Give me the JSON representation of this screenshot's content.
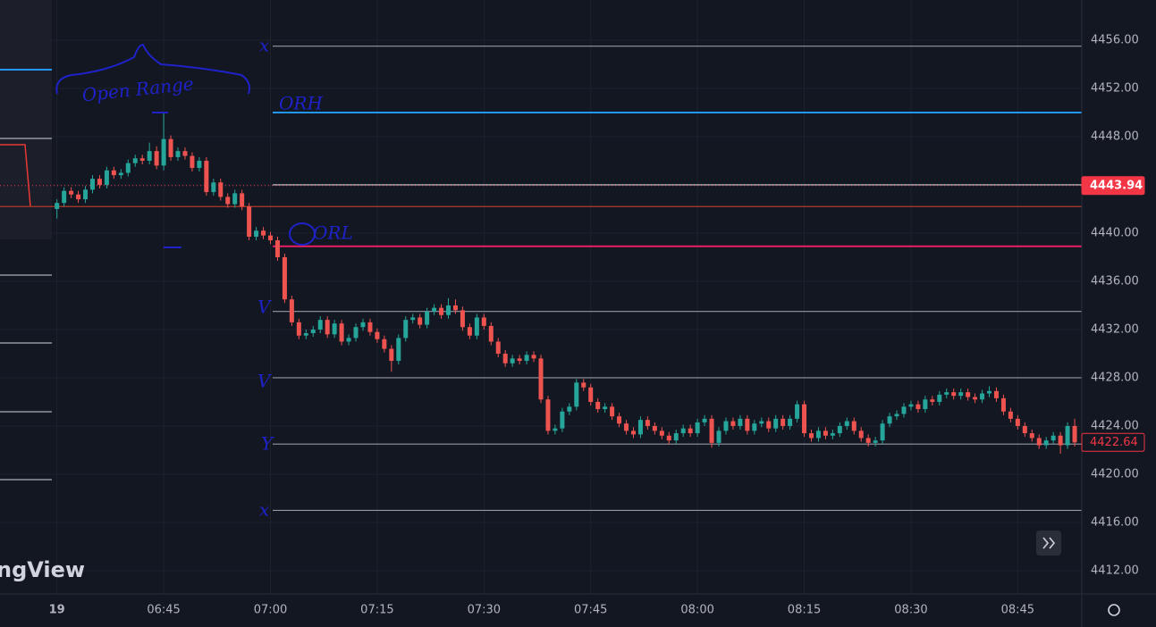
{
  "chart_data": {
    "type": "candlestick",
    "xlim": [
      "06:22",
      "08:54"
    ],
    "xticks": [
      {
        "value": "06:30",
        "label": "19"
      },
      "06:45",
      "07:00",
      "07:15",
      "07:30",
      "07:45",
      "08:00",
      "08:15",
      "08:30",
      "08:45"
    ],
    "ylim": [
      4410.07,
      4459.33
    ],
    "yticks": [
      {
        "value": 4456,
        "label": "4456.00"
      },
      {
        "value": 4452,
        "label": "4452.00"
      },
      {
        "value": 4448,
        "label": "4448.00"
      },
      {
        "value": 4444,
        "label": "4444.00"
      },
      {
        "value": 4440,
        "label": "4440.00"
      },
      {
        "value": 4436,
        "label": "4436.00"
      },
      {
        "value": 4432,
        "label": "4432.00"
      },
      {
        "value": 4428,
        "label": "4428.00"
      },
      {
        "value": 4424,
        "label": "4424.00"
      },
      {
        "value": 4420,
        "label": "4420.00"
      },
      {
        "value": 4416,
        "label": "4416.00"
      },
      {
        "value": 4412,
        "label": "4412.00"
      }
    ],
    "grid": true,
    "up_color": "#26a69a",
    "down_color": "#ef5350",
    "x": [
      "06:30",
      "06:31",
      "06:32",
      "06:33",
      "06:34",
      "06:35",
      "06:36",
      "06:37",
      "06:38",
      "06:39",
      "06:40",
      "06:41",
      "06:42",
      "06:43",
      "06:44",
      "06:45",
      "06:46",
      "06:47",
      "06:48",
      "06:49",
      "06:50",
      "06:51",
      "06:52",
      "06:53",
      "06:54",
      "06:55",
      "06:56",
      "06:57",
      "06:58",
      "06:59",
      "07:00",
      "07:01",
      "07:02",
      "07:03",
      "07:04",
      "07:05",
      "07:06",
      "07:07",
      "07:08",
      "07:09",
      "07:10",
      "07:11",
      "07:12",
      "07:13",
      "07:14",
      "07:15",
      "07:16",
      "07:17",
      "07:18",
      "07:19",
      "07:20",
      "07:21",
      "07:22",
      "07:23",
      "07:24",
      "07:25",
      "07:26",
      "07:27",
      "07:28",
      "07:29",
      "07:30",
      "07:31",
      "07:32",
      "07:33",
      "07:34",
      "07:35",
      "07:36",
      "07:37",
      "07:38",
      "07:39",
      "07:40",
      "07:41",
      "07:42",
      "07:43",
      "07:44",
      "07:45",
      "07:46",
      "07:47",
      "07:48",
      "07:49",
      "07:50",
      "07:51",
      "07:52",
      "07:53",
      "07:54",
      "07:55",
      "07:56",
      "07:57",
      "07:58",
      "07:59",
      "08:00",
      "08:01",
      "08:02",
      "08:03",
      "08:04",
      "08:05",
      "08:06",
      "08:07",
      "08:08",
      "08:09",
      "08:10",
      "08:11",
      "08:12",
      "08:13",
      "08:14",
      "08:15",
      "08:16",
      "08:17",
      "08:18",
      "08:19",
      "08:20",
      "08:21",
      "08:22",
      "08:23",
      "08:24",
      "08:25",
      "08:26",
      "08:27",
      "08:28",
      "08:29",
      "08:30",
      "08:31",
      "08:32",
      "08:33",
      "08:34",
      "08:35",
      "08:36",
      "08:37",
      "08:38",
      "08:39",
      "08:40",
      "08:41",
      "08:42",
      "08:43",
      "08:44",
      "08:45",
      "08:46",
      "08:47",
      "08:48",
      "08:49",
      "08:50",
      "08:51",
      "08:52",
      "08:53"
    ],
    "ohlc": [
      [
        4442.0,
        4442.8,
        4441.2,
        4442.5
      ],
      [
        4442.5,
        4443.8,
        4442.2,
        4443.5
      ],
      [
        4443.5,
        4443.8,
        4442.9,
        4443.2
      ],
      [
        4443.2,
        4443.5,
        4442.5,
        4442.8
      ],
      [
        4442.8,
        4443.9,
        4442.5,
        4443.6
      ],
      [
        4443.6,
        4444.8,
        4443.3,
        4444.5
      ],
      [
        4444.5,
        4444.8,
        4443.7,
        4444.0
      ],
      [
        4444.0,
        4445.5,
        4443.7,
        4445.2
      ],
      [
        4445.2,
        4445.5,
        4444.5,
        4444.8
      ],
      [
        4444.8,
        4445.3,
        4444.5,
        4445.0
      ],
      [
        4445.0,
        4446.1,
        4444.7,
        4445.8
      ],
      [
        4445.8,
        4446.5,
        4445.5,
        4446.2
      ],
      [
        4446.2,
        4446.5,
        4445.7,
        4446.0
      ],
      [
        4446.0,
        4447.5,
        4445.7,
        4446.8
      ],
      [
        4446.8,
        4447.2,
        4445.3,
        4445.6
      ],
      [
        4445.6,
        4450.0,
        4445.2,
        4447.8
      ],
      [
        4447.8,
        4448.1,
        4446.0,
        4446.3
      ],
      [
        4446.3,
        4447.1,
        4446.0,
        4446.8
      ],
      [
        4446.8,
        4447.1,
        4446.1,
        4446.4
      ],
      [
        4446.4,
        4446.7,
        4445.1,
        4445.4
      ],
      [
        4445.4,
        4446.3,
        4445.1,
        4446.0
      ],
      [
        4446.0,
        4446.3,
        4443.1,
        4443.4
      ],
      [
        4443.4,
        4444.5,
        4443.1,
        4444.2
      ],
      [
        4444.2,
        4444.5,
        4442.7,
        4443.0
      ],
      [
        4443.0,
        4443.3,
        4442.1,
        4442.4
      ],
      [
        4442.4,
        4443.6,
        4442.1,
        4443.3
      ],
      [
        4443.3,
        4443.6,
        4441.9,
        4442.2
      ],
      [
        4442.2,
        4442.5,
        4439.4,
        4439.7
      ],
      [
        4439.7,
        4440.5,
        4439.4,
        4440.2
      ],
      [
        4440.2,
        4440.5,
        4439.5,
        4439.8
      ],
      [
        4439.8,
        4440.1,
        4439.1,
        4439.4
      ],
      [
        4439.4,
        4439.7,
        4437.7,
        4438.0
      ],
      [
        4438.0,
        4438.3,
        4434.2,
        4434.5
      ],
      [
        4434.5,
        4434.8,
        4432.3,
        4432.6
      ],
      [
        4432.6,
        4432.9,
        4431.2,
        4431.5
      ],
      [
        4431.5,
        4432.0,
        4431.2,
        4431.7
      ],
      [
        4431.7,
        4432.3,
        4431.4,
        4432.0
      ],
      [
        4432.0,
        4433.1,
        4431.7,
        4432.8
      ],
      [
        4432.8,
        4433.1,
        4431.3,
        4431.6
      ],
      [
        4431.6,
        4432.8,
        4431.3,
        4432.5
      ],
      [
        4432.5,
        4432.8,
        4430.7,
        4431.0
      ],
      [
        4431.0,
        4431.6,
        4430.7,
        4431.3
      ],
      [
        4431.3,
        4432.5,
        4431.0,
        4432.2
      ],
      [
        4432.2,
        4432.9,
        4431.9,
        4432.6
      ],
      [
        4432.6,
        4432.9,
        4431.5,
        4431.8
      ],
      [
        4431.8,
        4432.1,
        4430.9,
        4431.2
      ],
      [
        4431.2,
        4431.5,
        4430.1,
        4430.4
      ],
      [
        4430.4,
        4430.7,
        4428.5,
        4429.4
      ],
      [
        4429.4,
        4431.6,
        4429.1,
        4431.3
      ],
      [
        4431.3,
        4433.1,
        4431.0,
        4432.8
      ],
      [
        4432.8,
        4433.3,
        4432.5,
        4433.0
      ],
      [
        4433.0,
        4433.3,
        4432.1,
        4432.4
      ],
      [
        4432.4,
        4433.8,
        4432.1,
        4433.5
      ],
      [
        4433.5,
        4434.1,
        4433.2,
        4433.8
      ],
      [
        4433.8,
        4434.1,
        4432.9,
        4433.2
      ],
      [
        4433.2,
        4434.6,
        4432.9,
        4434.0
      ],
      [
        4434.0,
        4434.5,
        4433.3,
        4433.6
      ],
      [
        4433.6,
        4433.9,
        4431.9,
        4432.2
      ],
      [
        4432.2,
        4432.5,
        4431.2,
        4431.5
      ],
      [
        4431.5,
        4433.3,
        4431.2,
        4433.0
      ],
      [
        4433.0,
        4433.3,
        4432.0,
        4432.3
      ],
      [
        4432.3,
        4432.6,
        4430.7,
        4431.0
      ],
      [
        4431.0,
        4431.3,
        4429.7,
        4430.0
      ],
      [
        4430.0,
        4430.3,
        4428.9,
        4429.2
      ],
      [
        4429.2,
        4429.9,
        4428.9,
        4429.6
      ],
      [
        4429.6,
        4429.9,
        4429.1,
        4429.4
      ],
      [
        4429.4,
        4430.2,
        4429.1,
        4429.9
      ],
      [
        4429.9,
        4430.2,
        4429.3,
        4429.6
      ],
      [
        4429.6,
        4429.9,
        4425.9,
        4426.2
      ],
      [
        4426.2,
        4426.5,
        4423.3,
        4423.6
      ],
      [
        4423.6,
        4424.1,
        4423.3,
        4423.8
      ],
      [
        4423.8,
        4425.5,
        4423.5,
        4425.2
      ],
      [
        4425.2,
        4425.9,
        4424.9,
        4425.6
      ],
      [
        4425.6,
        4427.9,
        4425.3,
        4427.6
      ],
      [
        4427.6,
        4427.9,
        4426.9,
        4427.2
      ],
      [
        4427.2,
        4427.5,
        4425.7,
        4426.0
      ],
      [
        4426.0,
        4426.3,
        4425.1,
        4425.4
      ],
      [
        4425.4,
        4425.9,
        4425.1,
        4425.6
      ],
      [
        4425.6,
        4425.9,
        4424.5,
        4424.8
      ],
      [
        4424.8,
        4425.1,
        4423.9,
        4424.2
      ],
      [
        4424.2,
        4424.5,
        4423.3,
        4423.6
      ],
      [
        4423.6,
        4423.9,
        4423.0,
        4423.3
      ],
      [
        4423.3,
        4424.8,
        4423.0,
        4424.5
      ],
      [
        4424.5,
        4424.8,
        4423.7,
        4424.0
      ],
      [
        4424.0,
        4424.3,
        4423.3,
        4423.6
      ],
      [
        4423.6,
        4423.9,
        4422.9,
        4423.2
      ],
      [
        4423.2,
        4423.5,
        4422.5,
        4422.8
      ],
      [
        4422.8,
        4423.7,
        4422.5,
        4423.4
      ],
      [
        4423.4,
        4424.1,
        4423.1,
        4423.8
      ],
      [
        4423.8,
        4424.1,
        4423.1,
        4423.4
      ],
      [
        4423.4,
        4424.6,
        4423.1,
        4424.3
      ],
      [
        4424.3,
        4424.9,
        4424.0,
        4424.6
      ],
      [
        4424.6,
        4424.9,
        4422.2,
        4422.6
      ],
      [
        4422.6,
        4423.9,
        4422.3,
        4423.6
      ],
      [
        4423.6,
        4424.7,
        4423.3,
        4424.4
      ],
      [
        4424.4,
        4424.7,
        4423.7,
        4424.0
      ],
      [
        4424.0,
        4424.9,
        4423.7,
        4424.6
      ],
      [
        4424.6,
        4424.9,
        4423.3,
        4423.6
      ],
      [
        4423.6,
        4424.5,
        4423.3,
        4424.2
      ],
      [
        4424.2,
        4424.7,
        4423.9,
        4424.4
      ],
      [
        4424.4,
        4424.7,
        4423.5,
        4423.8
      ],
      [
        4423.8,
        4424.9,
        4423.5,
        4424.6
      ],
      [
        4424.6,
        4424.9,
        4423.7,
        4424.0
      ],
      [
        4424.0,
        4424.9,
        4423.7,
        4424.6
      ],
      [
        4424.6,
        4426.1,
        4424.3,
        4425.8
      ],
      [
        4425.8,
        4426.1,
        4423.1,
        4423.4
      ],
      [
        4423.4,
        4423.7,
        4422.7,
        4423.0
      ],
      [
        4423.0,
        4423.9,
        4422.7,
        4423.6
      ],
      [
        4423.6,
        4423.9,
        4422.9,
        4423.2
      ],
      [
        4423.2,
        4423.7,
        4422.9,
        4423.4
      ],
      [
        4423.4,
        4424.3,
        4423.1,
        4424.0
      ],
      [
        4424.0,
        4424.7,
        4423.7,
        4424.4
      ],
      [
        4424.4,
        4424.7,
        4423.3,
        4423.6
      ],
      [
        4423.6,
        4423.9,
        4422.7,
        4423.0
      ],
      [
        4423.0,
        4423.3,
        4422.3,
        4422.6
      ],
      [
        4422.6,
        4423.1,
        4422.3,
        4422.8
      ],
      [
        4422.8,
        4424.5,
        4422.5,
        4424.2
      ],
      [
        4424.2,
        4425.1,
        4423.9,
        4424.8
      ],
      [
        4424.8,
        4425.3,
        4424.5,
        4425.0
      ],
      [
        4425.0,
        4425.9,
        4424.7,
        4425.6
      ],
      [
        4425.6,
        4426.1,
        4425.3,
        4425.8
      ],
      [
        4425.8,
        4426.1,
        4425.1,
        4425.4
      ],
      [
        4425.4,
        4426.5,
        4425.1,
        4426.2
      ],
      [
        4426.2,
        4426.5,
        4425.7,
        4426.0
      ],
      [
        4426.0,
        4426.9,
        4425.7,
        4426.6
      ],
      [
        4426.6,
        4427.1,
        4426.3,
        4426.8
      ],
      [
        4426.8,
        4427.1,
        4426.2,
        4426.5
      ],
      [
        4426.5,
        4427.1,
        4426.2,
        4426.8
      ],
      [
        4426.8,
        4427.1,
        4426.1,
        4426.4
      ],
      [
        4426.4,
        4426.7,
        4425.9,
        4426.2
      ],
      [
        4426.2,
        4427.0,
        4425.9,
        4426.7
      ],
      [
        4426.7,
        4427.3,
        4426.4,
        4426.9
      ],
      [
        4426.9,
        4427.2,
        4426.0,
        4426.3
      ],
      [
        4426.3,
        4426.6,
        4424.9,
        4425.2
      ],
      [
        4425.2,
        4425.5,
        4424.3,
        4424.6
      ],
      [
        4424.6,
        4424.9,
        4423.7,
        4424.0
      ],
      [
        4424.0,
        4424.3,
        4423.1,
        4423.4
      ],
      [
        4423.4,
        4423.7,
        4422.7,
        4423.0
      ],
      [
        4423.0,
        4423.3,
        4422.1,
        4422.4
      ],
      [
        4422.4,
        4423.1,
        4422.1,
        4422.8
      ],
      [
        4422.8,
        4423.5,
        4422.5,
        4423.2
      ],
      [
        4423.2,
        4423.5,
        4421.7,
        4422.4
      ],
      [
        4422.4,
        4424.3,
        4422.1,
        4424.0
      ],
      [
        4424.0,
        4424.6,
        4422.3,
        4422.64
      ]
    ],
    "levels": [
      {
        "value": 4455.5,
        "color": "#9598a1"
      },
      {
        "value": 4450.0,
        "color": "#2196f3"
      },
      {
        "value": 4444.0,
        "color": "#d1d4dc"
      },
      {
        "value": 4442.2,
        "color": "#b23a2a"
      },
      {
        "value": 4438.9,
        "color": "#e91e63"
      },
      {
        "value": 4433.5,
        "color": "#9598a1"
      },
      {
        "value": 4428.0,
        "color": "#9598a1"
      },
      {
        "value": 4422.5,
        "color": "#9598a1"
      },
      {
        "value": 4417.0,
        "color": "#9598a1"
      }
    ],
    "price_labels": [
      {
        "value": 4443.94,
        "color": "#f23645",
        "filled": true
      },
      {
        "value": 4422.64,
        "color": "#f23645",
        "filled": false
      }
    ],
    "annotations": [
      "Open Range",
      "ORH",
      "ORL",
      "x",
      "V",
      "V",
      "Y",
      "x"
    ],
    "watermark": "ngView"
  }
}
